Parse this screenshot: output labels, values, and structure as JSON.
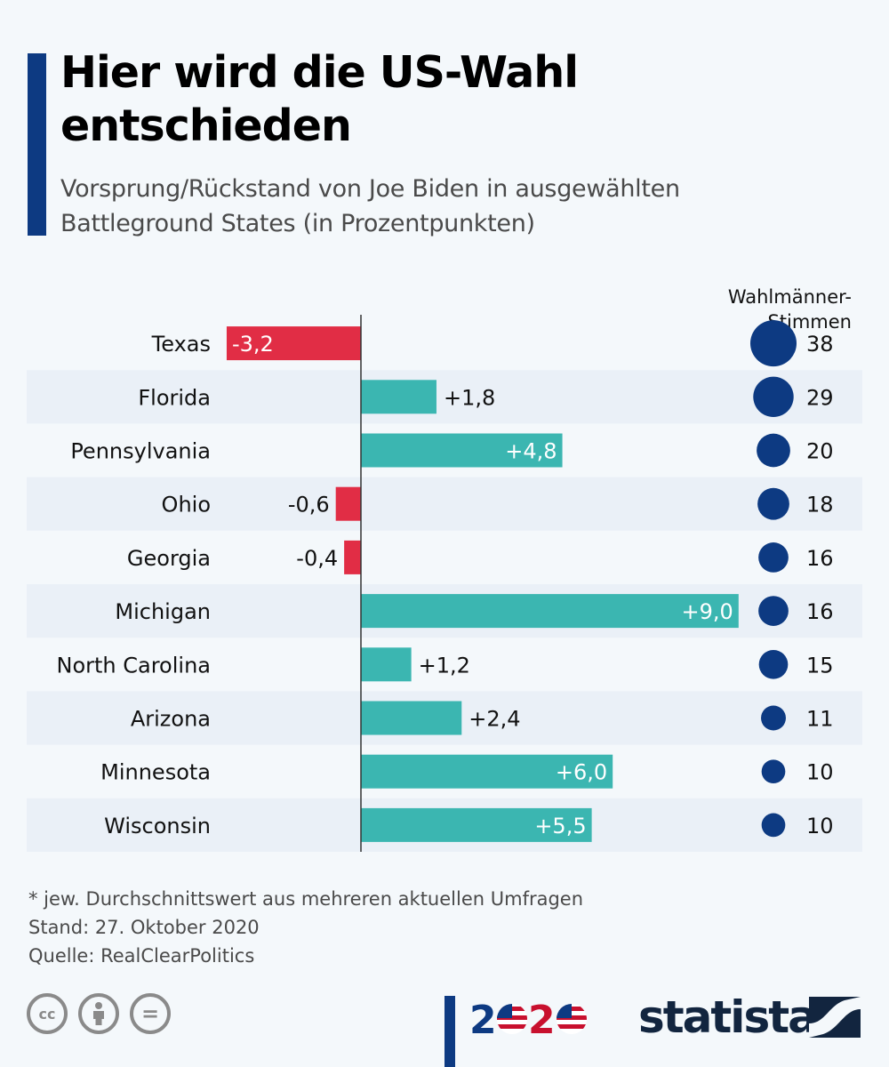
{
  "header": {
    "title": "Hier wird die US-Wahl entschieden",
    "subtitle": "Vorsprung/Rückstand von Joe Biden in ausgewählten Battleground States (in Prozentpunkten)",
    "ev_header_line1": "Wahlmänner-",
    "ev_header_line2": "Stimmen"
  },
  "colors": {
    "positive": "#3bb6b1",
    "negative": "#e12d45",
    "electoral_dot": "#0d3a82",
    "accent": "#0d3a82",
    "row_band": "#eaf0f7"
  },
  "chart_data": {
    "type": "bar",
    "orientation": "horizontal",
    "title": "Hier wird die US-Wahl entschieden",
    "subtitle": "Vorsprung/Rückstand von Joe Biden in ausgewählten Battleground States (in Prozentpunkten)",
    "categories": [
      "Texas",
      "Florida",
      "Pennsylvania",
      "Ohio",
      "Georgia",
      "Michigan",
      "North Carolina",
      "Arizona",
      "Minnesota",
      "Wisconsin"
    ],
    "series": [
      {
        "name": "Vorsprung/Rückstand Biden (Prozentpunkte)",
        "values": [
          -3.2,
          1.8,
          4.8,
          -0.6,
          -0.4,
          9.0,
          1.2,
          2.4,
          6.0,
          5.5
        ]
      },
      {
        "name": "Wahlmänner-Stimmen",
        "values": [
          38,
          29,
          20,
          18,
          16,
          16,
          15,
          11,
          10,
          10
        ]
      }
    ],
    "value_labels": [
      "-3,2",
      "+1,8",
      "+4,8",
      "-0,6",
      "-0,4",
      "+9,0",
      "+1,2",
      "+2,4",
      "+6,0",
      "+5,5"
    ],
    "electoral_labels": [
      "38",
      "29",
      "20",
      "18",
      "16",
      "16",
      "15",
      "11",
      "10",
      "10"
    ],
    "xlim": [
      -3.2,
      9.0
    ],
    "xlabel": "",
    "ylabel": "",
    "grid": false,
    "legend": "none"
  },
  "footer": {
    "note": "* jew. Durchschnittswert aus mehreren aktuellen Umfragen",
    "date": "Stand: 27. Oktober 2020",
    "source": "Quelle: RealClearPolitics",
    "cc_icons": [
      "cc-icon",
      "attribution-icon",
      "no-derivatives-icon"
    ],
    "cc_label": "cc",
    "eq_label": "=",
    "logo_2020": "2020",
    "brand": "statista"
  }
}
